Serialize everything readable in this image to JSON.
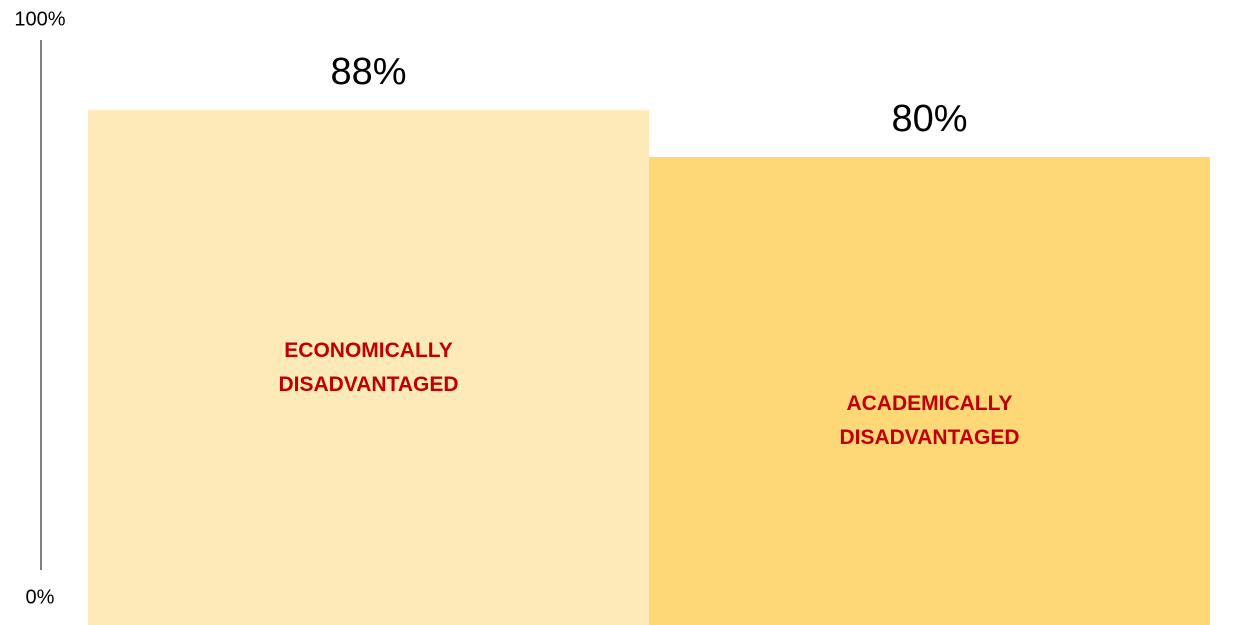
{
  "chart_data": {
    "type": "bar",
    "categories": [
      "ECONOMICALLY DISADVANTAGED",
      "ACADEMICALLY DISADVANTAGED"
    ],
    "values": [
      88,
      80
    ],
    "value_labels": [
      "88%",
      "80%"
    ],
    "colors": [
      "#fdeab8",
      "#fed876"
    ],
    "label_color": "#c00000",
    "ylim": [
      0,
      100
    ],
    "yticks": [
      {
        "value": 0,
        "label": "0%"
      },
      {
        "value": 100,
        "label": "100%"
      }
    ],
    "grid": false
  }
}
